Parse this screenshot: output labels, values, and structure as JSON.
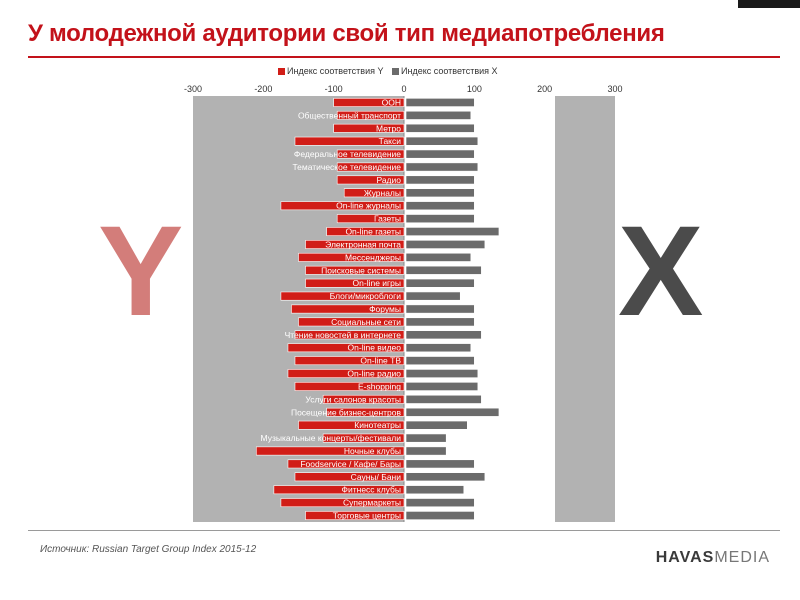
{
  "page": {
    "title": "У молодежной аудитории свой тип медиапотребления",
    "source": "Источник: Russian Target Group Index 2015-12",
    "brand_main": "HAVAS",
    "brand_sub": "MEDIA",
    "big_letter_y": "Y",
    "big_letter_x": "X"
  },
  "colors": {
    "title": "#c3121a",
    "series_y": "#d11d17",
    "series_x": "#6b6b6b",
    "plot_background": "#b2b2b2"
  },
  "chart_data": {
    "type": "bar",
    "orientation": "horizontal",
    "xlim": [
      -300,
      300
    ],
    "x_ticks": [
      -300,
      -200,
      -100,
      0,
      100,
      200,
      300
    ],
    "x_tick_labels": [
      "-300",
      "-200",
      "-100",
      "0",
      "100",
      "200",
      "300"
    ],
    "grid": false,
    "legend_position": "top",
    "categories": [
      "ООН",
      "Общественный транспорт",
      "Метро",
      "Такси",
      "Федеральное телевидение",
      "Тематическое телевидение",
      "Радио",
      "Журналы",
      "On-line журналы",
      "Газеты",
      "On-line газеты",
      "Электронная почта",
      "Мессенджеры",
      "Поисковые системы",
      "On-line игры",
      "Блоги/микроблоги",
      "Форумы",
      "Социальные сети",
      "Чтение новостей в интернете",
      "On-line видео",
      "On-line ТВ",
      "On-line радио",
      "E-shopping",
      "Услуги салонов красоты",
      "Посещение бизнес-центров",
      "Кинотеатры",
      "Музыкальные концерты/фестивали",
      "Ночные клубы",
      "Foodservice / Кафе/ Бары",
      "Сауны/ Бани",
      "Фитнесс клубы",
      "Супермаркеты",
      "Торговые центры"
    ],
    "series": [
      {
        "name": "Индекс соответствия Y",
        "values": [
          -100,
          -95,
          -100,
          -155,
          -95,
          -95,
          -95,
          -85,
          -175,
          -95,
          -110,
          -140,
          -150,
          -140,
          -140,
          -175,
          -160,
          -150,
          -155,
          -165,
          -155,
          -165,
          -155,
          -115,
          -110,
          -150,
          -115,
          -210,
          -165,
          -155,
          -185,
          -175,
          -140
        ]
      },
      {
        "name": "Индекс соответствия X",
        "values": [
          100,
          95,
          100,
          105,
          100,
          105,
          100,
          100,
          100,
          100,
          135,
          115,
          95,
          110,
          100,
          80,
          100,
          100,
          110,
          95,
          100,
          105,
          105,
          110,
          135,
          90,
          60,
          60,
          100,
          115,
          85,
          100,
          100
        ]
      }
    ]
  }
}
